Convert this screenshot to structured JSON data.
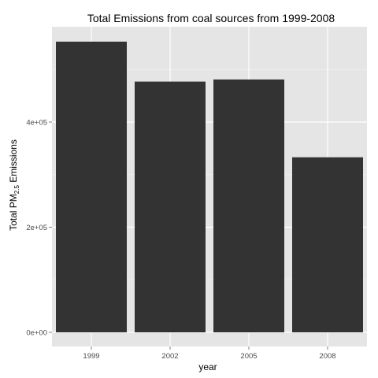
{
  "chart_data": {
    "type": "bar",
    "title": "Total Emissions from coal sources from 1999-2008",
    "xlabel": "year",
    "ylabel": {
      "prefix": "Total PM",
      "subscript": "2.5",
      "suffix": " Emissions"
    },
    "categories": [
      "1999",
      "2002",
      "2005",
      "2008"
    ],
    "values": [
      553000,
      477000,
      481000,
      333000
    ],
    "ylim": [
      0,
      580000
    ],
    "yticks": [
      {
        "value": 0,
        "label": "0e+00"
      },
      {
        "value": 200000,
        "label": "2e+05"
      },
      {
        "value": 400000,
        "label": "4e+05"
      }
    ],
    "grid": true,
    "colors": {
      "panel": "#e5e5e5",
      "grid_major": "#ffffff",
      "grid_minor": "#f2f2f2",
      "bar": "#333333",
      "tick_text": "#4d4d4d"
    }
  }
}
